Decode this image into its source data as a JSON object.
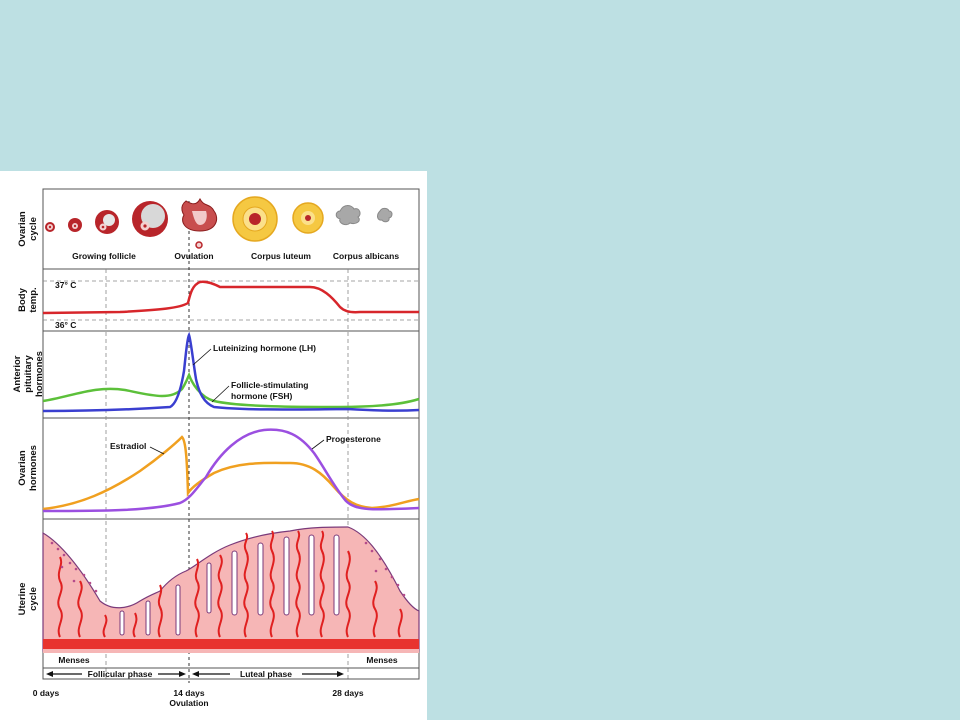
{
  "rows": {
    "ovarian_cycle": [
      "Ovarian",
      "cycle"
    ],
    "body_temp": [
      "Body",
      "temp."
    ],
    "anterior_pituitary": [
      "Anterior",
      "pituitary",
      "hormones"
    ],
    "ovarian_hormones": [
      "Ovarian",
      "hormones"
    ],
    "uterine_cycle": [
      "Uterine",
      "cycle"
    ]
  },
  "ovary_labels": {
    "growing_follicle": "Growing follicle",
    "ovulation": "Ovulation",
    "corpus_luteum": "Corpus luteum",
    "corpus_albicans": "Corpus albicans"
  },
  "temp": {
    "high": "37° C",
    "low": "36° C"
  },
  "hormones": {
    "lh": "Luteinizing hormone (LH)",
    "fsh_line1": "Follicle-stimulating",
    "fsh_line2": "hormone (FSH)",
    "estradiol": "Estradiol",
    "progesterone": "Progesterone"
  },
  "phases": {
    "menses": "Menses",
    "follicular": "Follicular phase",
    "luteal": "Luteal phase"
  },
  "axis": {
    "day0": "0 days",
    "day14": "14 days",
    "day14_sub": "Ovulation",
    "day28": "28 days"
  },
  "colors": {
    "temp": "#d7262b",
    "lh": "#3a3fd0",
    "fsh": "#5cc03a",
    "estradiol": "#f0a020",
    "progesterone": "#9b4fe0",
    "endometrium": "#f6b6b6",
    "vessel": "#e02020",
    "follicle": "#b8252a",
    "luteum": "#f5c842",
    "albicans": "#a8a8a8"
  }
}
